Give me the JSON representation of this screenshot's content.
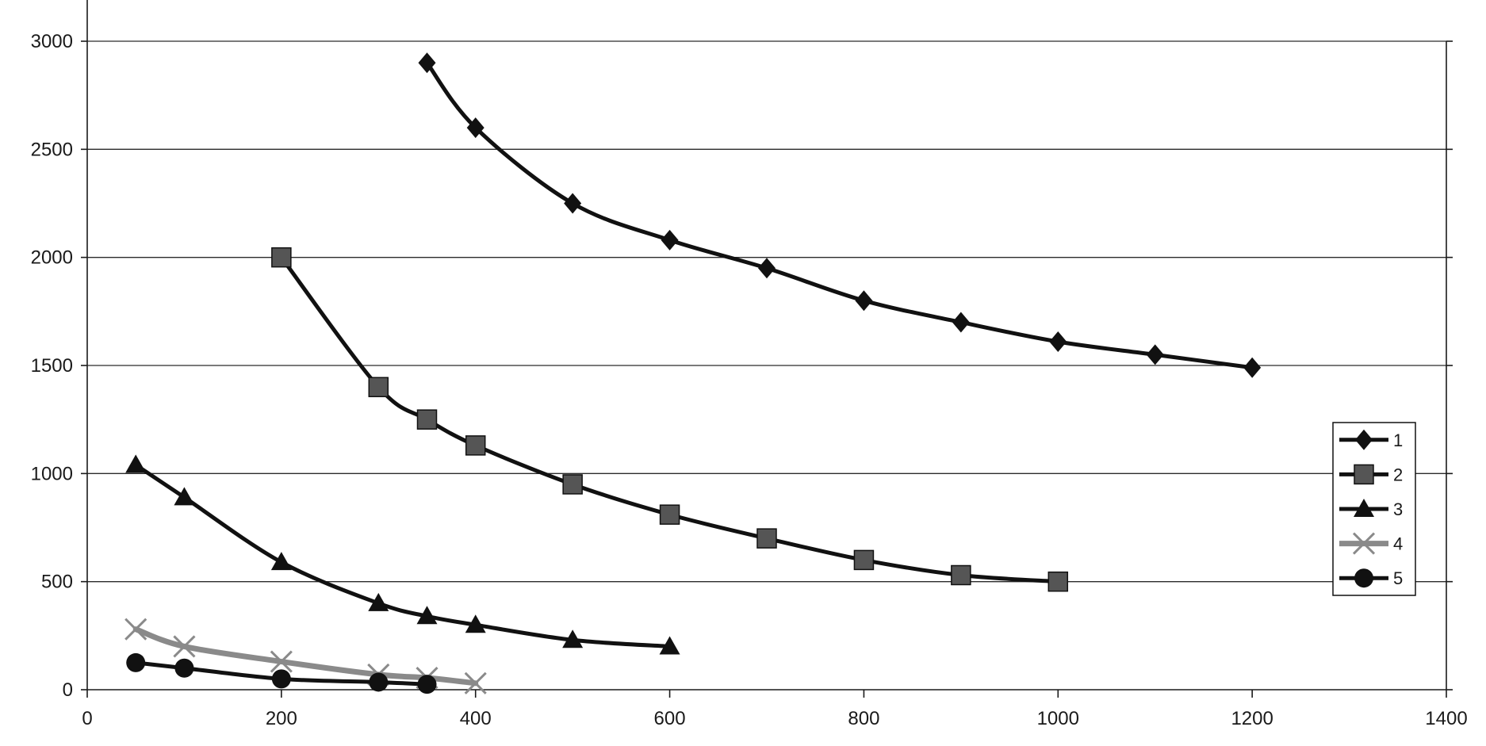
{
  "chart_data": {
    "type": "line",
    "title": "",
    "xlabel": "",
    "ylabel": "",
    "xlim": [
      0,
      1400
    ],
    "ylim": [
      0,
      3000
    ],
    "x_ticks": [
      "0",
      "200",
      "400",
      "600",
      "800",
      "1000",
      "1200",
      "1400"
    ],
    "y_ticks": [
      "0",
      "500",
      "1000",
      "1500",
      "2000",
      "2500",
      "3000"
    ],
    "grid": "horizontal",
    "legend_position": "right",
    "series": [
      {
        "name": "1",
        "marker": "diamond",
        "color": "#111111",
        "points": [
          [
            350,
            2900
          ],
          [
            400,
            2600
          ],
          [
            500,
            2250
          ],
          [
            600,
            2080
          ],
          [
            700,
            1950
          ],
          [
            800,
            1800
          ],
          [
            900,
            1700
          ],
          [
            1000,
            1610
          ],
          [
            1100,
            1550
          ],
          [
            1200,
            1490
          ]
        ]
      },
      {
        "name": "2",
        "marker": "square",
        "color": "#111111",
        "points": [
          [
            200,
            2000
          ],
          [
            300,
            1400
          ],
          [
            350,
            1250
          ],
          [
            400,
            1130
          ],
          [
            500,
            950
          ],
          [
            600,
            810
          ],
          [
            700,
            700
          ],
          [
            800,
            600
          ],
          [
            900,
            530
          ],
          [
            1000,
            500
          ]
        ]
      },
      {
        "name": "3",
        "marker": "triangle",
        "color": "#111111",
        "points": [
          [
            50,
            1040
          ],
          [
            100,
            890
          ],
          [
            200,
            590
          ],
          [
            300,
            400
          ],
          [
            350,
            340
          ],
          [
            400,
            300
          ],
          [
            500,
            230
          ],
          [
            600,
            200
          ]
        ]
      },
      {
        "name": "4",
        "marker": "x",
        "color": "#8a8a8a",
        "points": [
          [
            50,
            280
          ],
          [
            100,
            200
          ],
          [
            200,
            130
          ],
          [
            300,
            70
          ],
          [
            350,
            55
          ],
          [
            400,
            30
          ]
        ]
      },
      {
        "name": "5",
        "marker": "circle",
        "color": "#111111",
        "points": [
          [
            50,
            125
          ],
          [
            100,
            100
          ],
          [
            200,
            50
          ],
          [
            300,
            35
          ],
          [
            350,
            25
          ]
        ]
      }
    ]
  }
}
